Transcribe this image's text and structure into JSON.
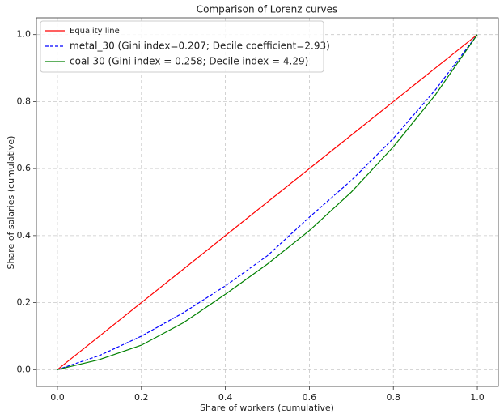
{
  "chart_data": {
    "type": "line",
    "title": "Comparison of Lorenz curves",
    "xlabel": "Share of workers (cumulative)",
    "ylabel": "Share of salaries (cumulative)",
    "x": [
      0,
      0.1,
      0.2,
      0.3,
      0.4,
      0.5,
      0.6,
      0.7,
      0.8,
      0.9,
      1.0
    ],
    "series": [
      {
        "name": "Equality line",
        "color": "#ff0000",
        "dash": false,
        "values": [
          0,
          0.1,
          0.2,
          0.3,
          0.4,
          0.5,
          0.6,
          0.7,
          0.8,
          0.9,
          1.0
        ]
      },
      {
        "name": "metal_30 (Gini index=0.207; Decile coefficient=2.93)",
        "color": "#0000ff",
        "dash": true,
        "values": [
          0,
          0.042,
          0.1,
          0.17,
          0.25,
          0.34,
          0.455,
          0.565,
          0.69,
          0.835,
          1.0
        ]
      },
      {
        "name": "coal 30 (Gini index = 0.258; Decile index = 4.29)",
        "color": "#008000",
        "dash": false,
        "values": [
          0,
          0.03,
          0.073,
          0.14,
          0.225,
          0.315,
          0.415,
          0.53,
          0.665,
          0.82,
          1.0
        ]
      }
    ],
    "xlim": [
      -0.05,
      1.05
    ],
    "ylim": [
      -0.05,
      1.05
    ],
    "xticks": [
      {
        "value": 0,
        "label": "0.0"
      },
      {
        "value": 0.2,
        "label": "0.2"
      },
      {
        "value": 0.4,
        "label": "0.4"
      },
      {
        "value": 0.6,
        "label": "0.6"
      },
      {
        "value": 0.8,
        "label": "0.8"
      },
      {
        "value": 1,
        "label": "1.0"
      }
    ],
    "yticks": [
      {
        "value": 0,
        "label": "0.0"
      },
      {
        "value": 0.2,
        "label": "0.2"
      },
      {
        "value": 0.4,
        "label": "0.4"
      },
      {
        "value": 0.6,
        "label": "0.6"
      },
      {
        "value": 0.8,
        "label": "0.8"
      },
      {
        "value": 1,
        "label": "1.0"
      }
    ],
    "grid": true,
    "legend": "upper-left"
  }
}
